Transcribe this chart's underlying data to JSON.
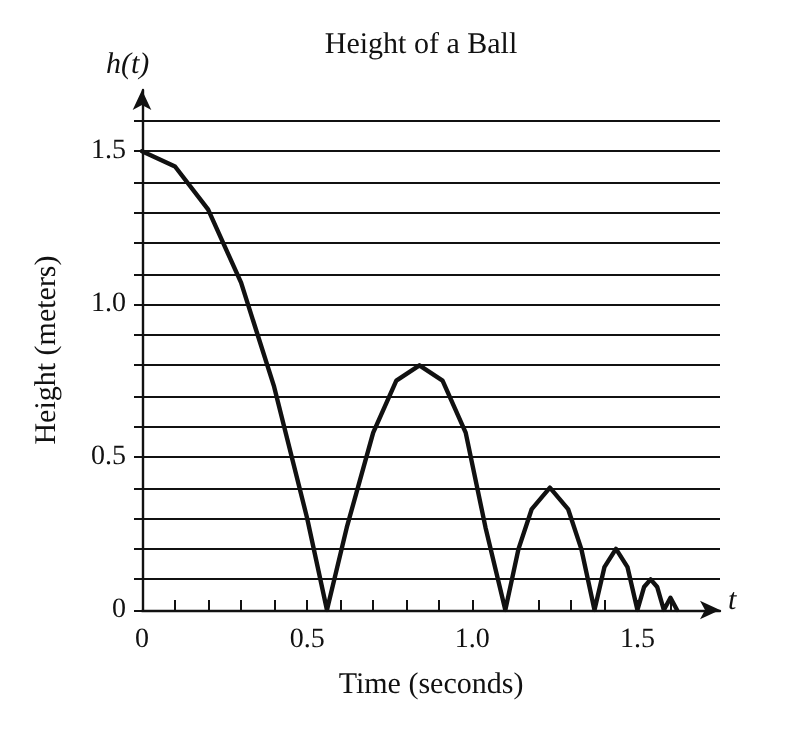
{
  "chart_data": {
    "type": "line",
    "title": "Height of a Ball",
    "xlabel": "Time (seconds)",
    "ylabel": "Height (meters)",
    "annotations": [
      "h(t)",
      "t"
    ],
    "color": "#111111",
    "line_style": "solid",
    "marker": "none",
    "grid": "y",
    "x": [
      0,
      0.1,
      0.2,
      0.3,
      0.4,
      0.5,
      0.56,
      0.62,
      0.7,
      0.77,
      0.84,
      0.91,
      0.98,
      1.04,
      1.1,
      1.14,
      1.18,
      1.235,
      1.29,
      1.33,
      1.37,
      1.4,
      1.435,
      1.47,
      1.5,
      1.52,
      1.54,
      1.56,
      1.58,
      1.6,
      1.62
    ],
    "values": [
      1.5,
      1.45,
      1.31,
      1.07,
      0.73,
      0.3,
      0,
      0.27,
      0.58,
      0.75,
      0.8,
      0.75,
      0.58,
      0.27,
      0,
      0.2,
      0.33,
      0.4,
      0.33,
      0.2,
      0,
      0.14,
      0.2,
      0.14,
      0,
      0.075,
      0.1,
      0.075,
      0,
      0.04,
      0
    ],
    "xlim": [
      0,
      1.75
    ],
    "ylim": [
      0,
      1.7
    ],
    "xticks": [
      0,
      {
        "value": 0.1,
        "label": null
      },
      {
        "value": 0.2,
        "label": null
      },
      {
        "value": 0.3,
        "label": null
      },
      {
        "value": 0.4,
        "label": null
      },
      0.5,
      {
        "value": 0.6,
        "label": null
      },
      {
        "value": 0.7,
        "label": null
      },
      {
        "value": 0.8,
        "label": null
      },
      {
        "value": 0.9,
        "label": null
      },
      {
        "value": 1.0,
        "label": "1.0"
      },
      {
        "value": 1.1,
        "label": null
      },
      {
        "value": 1.2,
        "label": null
      },
      {
        "value": 1.3,
        "label": null
      },
      {
        "value": 1.4,
        "label": null
      },
      1.5,
      {
        "value": 1.6,
        "label": null
      }
    ],
    "yticks": [
      0,
      {
        "value": 0.1,
        "label": null
      },
      {
        "value": 0.2,
        "label": null
      },
      {
        "value": 0.3,
        "label": null
      },
      {
        "value": 0.4,
        "label": null
      },
      0.5,
      {
        "value": 0.6,
        "label": null
      },
      {
        "value": 0.7,
        "label": null
      },
      {
        "value": 0.8,
        "label": null
      },
      {
        "value": 0.9,
        "label": null
      },
      {
        "value": 1.0,
        "label": "1.0"
      },
      {
        "value": 1.1,
        "label": null
      },
      {
        "value": 1.2,
        "label": null
      },
      {
        "value": 1.3,
        "label": null
      },
      {
        "value": 1.4,
        "label": null
      },
      1.5,
      {
        "value": 1.6,
        "label": null
      }
    ]
  }
}
